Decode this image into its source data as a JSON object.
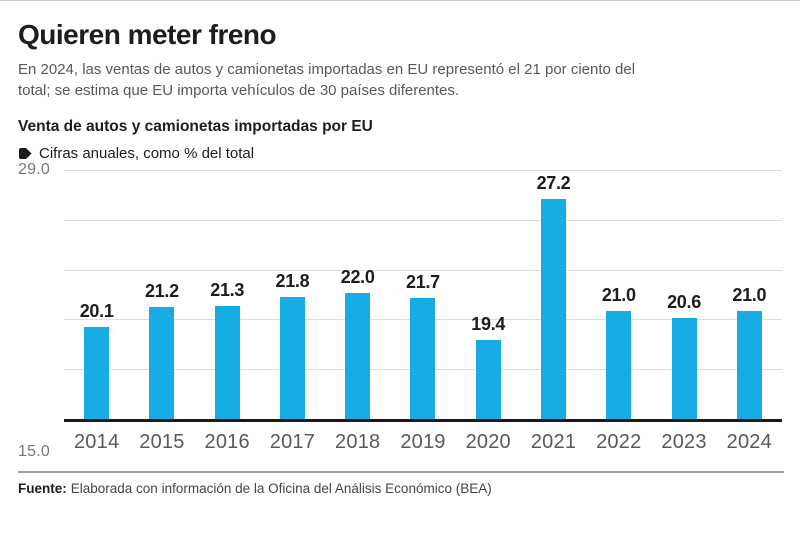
{
  "header": {
    "title": "Quieren meter freno",
    "subtitle": "En 2024, las ventas de autos y camionetas importadas en EU representó el 21 por ciento del total; se estima que EU importa vehículos de 30 países diferentes."
  },
  "chart": {
    "title": "Venta de autos y camionetas importadas por EU",
    "legend_label": "Cifras anuales, como % del total",
    "legend_marker_color": "#1d1d1b"
  },
  "chart_data": {
    "type": "bar",
    "title": "Venta de autos y camionetas importadas por EU",
    "legend": "Cifras anuales, como % del total",
    "categories": [
      "2014",
      "2015",
      "2016",
      "2017",
      "2018",
      "2019",
      "2020",
      "2021",
      "2022",
      "2023",
      "2024"
    ],
    "values": [
      20.1,
      21.2,
      21.3,
      21.8,
      22.0,
      21.7,
      19.4,
      27.2,
      21.0,
      20.6,
      21.0
    ],
    "xlabel": "",
    "ylabel": "",
    "ylim": [
      15.0,
      29.0
    ],
    "y_axis_labels": [
      "29.0",
      "15.0"
    ],
    "grid": {
      "enabled": true,
      "inner_lines": 4
    },
    "bar_color": "#17ade4",
    "value_labels_shown": true,
    "legend_position": "top-left"
  },
  "footer": {
    "source_label": "Fuente:",
    "source_text": "Elaborada con información de la Oficina del Análisis Económico (BEA)"
  }
}
